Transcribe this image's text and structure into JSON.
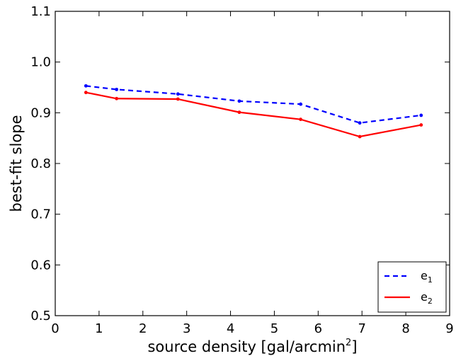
{
  "chart_data": {
    "type": "line",
    "xlabel": "source density [gal/arcmin",
    "xlabel_sup": "2",
    "xlabel_tail": "]",
    "ylabel": "best-fit slope",
    "xlim": [
      0,
      9
    ],
    "ylim": [
      0.5,
      1.1
    ],
    "x_ticks": [
      "0",
      "1",
      "2",
      "3",
      "4",
      "5",
      "6",
      "7",
      "8",
      "9"
    ],
    "y_ticks": [
      "0.5",
      "0.6",
      "0.7",
      "0.8",
      "0.9",
      "1.0",
      "1.1"
    ],
    "x": [
      0.7,
      1.4,
      2.8,
      4.2,
      5.6,
      6.95,
      8.35
    ],
    "series": [
      {
        "name": "e",
        "subscript": "1",
        "color": "#0000ff",
        "style": "dashed",
        "values": [
          0.953,
          0.946,
          0.937,
          0.923,
          0.917,
          0.88,
          0.895
        ]
      },
      {
        "name": "e",
        "subscript": "2",
        "color": "#ff0000",
        "style": "solid",
        "values": [
          0.94,
          0.928,
          0.927,
          0.901,
          0.887,
          0.853,
          0.876
        ]
      }
    ],
    "legend_position": "lower-right",
    "grid": false
  }
}
